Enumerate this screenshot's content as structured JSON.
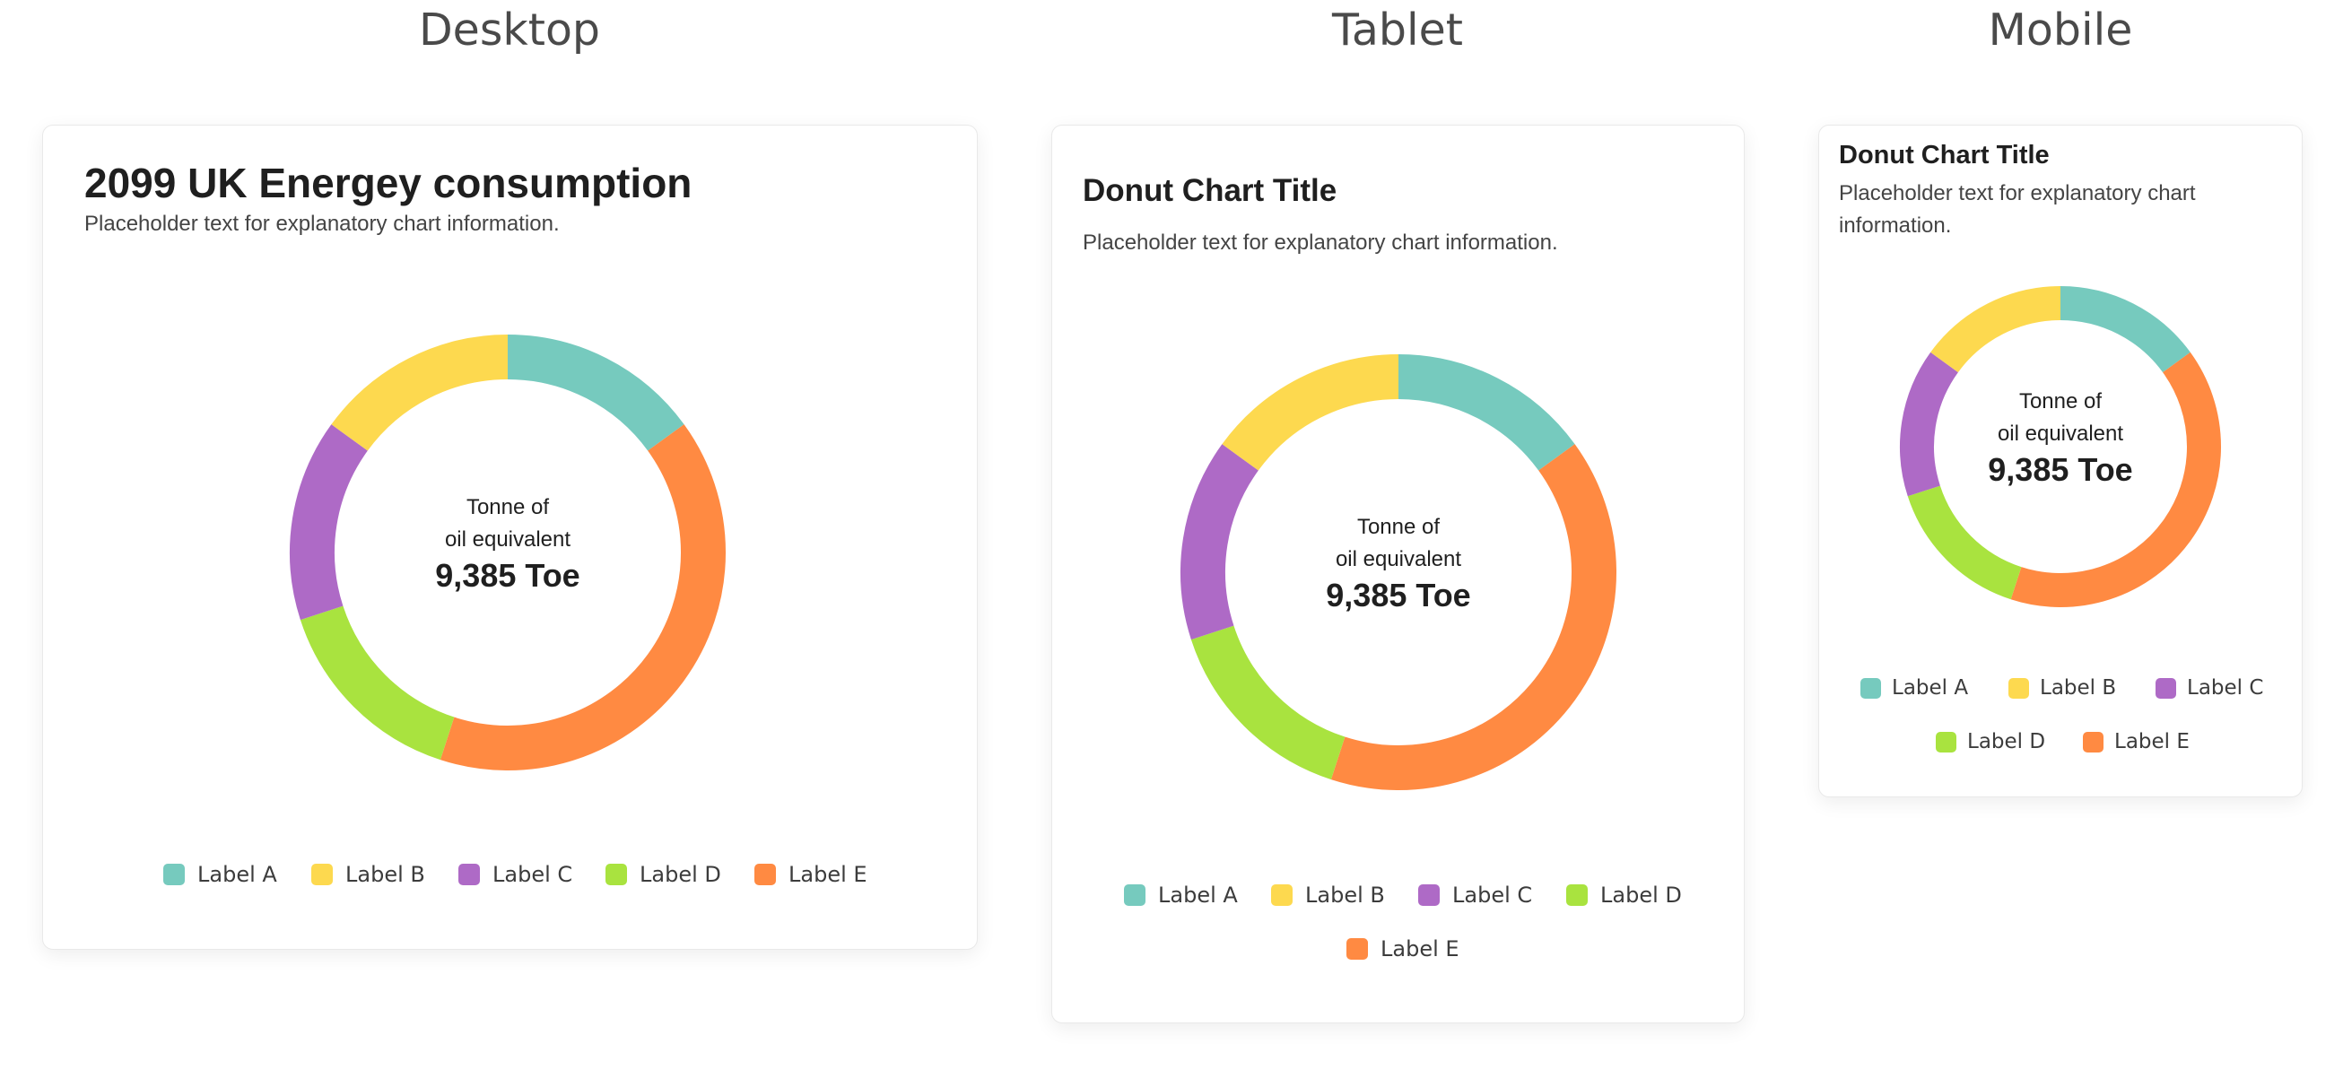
{
  "headings": {
    "desktop": "Desktop",
    "tablet": "Tablet",
    "mobile": "Mobile"
  },
  "cards": {
    "desktop": {
      "title": "2099 UK Energey consumption",
      "description": "Placeholder text for explanatory chart information.",
      "center_line1": "Tonne of",
      "center_line2": "oil equivalent",
      "center_value": "9,385 Toe"
    },
    "tablet": {
      "title": "Donut Chart Title",
      "description": "Placeholder text for explanatory chart information.",
      "center_line1": "Tonne of",
      "center_line2": "oil equivalent",
      "center_value": "9,385 Toe"
    },
    "mobile": {
      "title": "Donut Chart Title",
      "description": "Placeholder text for explanatory chart information.",
      "center_line1": "Tonne of",
      "center_line2": "oil equivalent",
      "center_value": "9,385 Toe"
    }
  },
  "colors": {
    "label_a": "#76cabe",
    "label_b": "#fdd94f",
    "label_c": "#ae6ac6",
    "label_d": "#a9e33f",
    "label_e": "#ff8a42"
  },
  "chart_data": {
    "type": "pie",
    "donut": true,
    "categories": [
      "Label A",
      "Label B",
      "Label C",
      "Label D",
      "Label E"
    ],
    "values": [
      15,
      15,
      15,
      15,
      40
    ],
    "center_text": [
      "Tonne of",
      "oil equivalent",
      "9,385 Toe"
    ],
    "legend_position": "bottom"
  }
}
